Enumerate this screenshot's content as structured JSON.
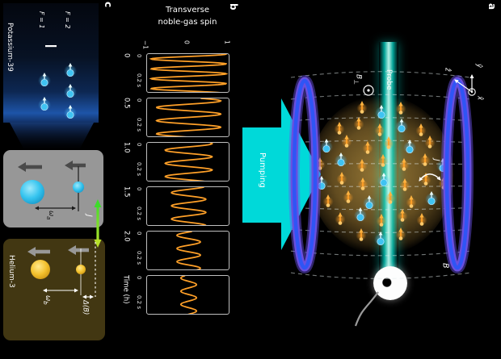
{
  "panels": {
    "a_label": "a",
    "b_label": "b",
    "c_label": "c"
  },
  "panel_a": {
    "pumping_label": "Pumping",
    "probe_label": "Probe",
    "b_perp": {
      "base": "B",
      "sub": "⊥"
    },
    "b_field_label": "B",
    "j_label": "J",
    "axis_x": "x̂",
    "axis_y": "ŷ",
    "axis_z": "ẑ",
    "colors": {
      "pump": "#00d9d9",
      "probe": "#00e0d0",
      "coil": "#2f55f5",
      "noble_spin": "#ffa028",
      "alkali_atom": "#3fc3f2"
    }
  },
  "panel_b": {
    "title_line1": "Transverse",
    "title_line2": "noble-gas spin",
    "amp_ticks": [
      "−1",
      "0",
      "1"
    ],
    "win_tick_start": "0",
    "win_tick_end": "0.2 s",
    "time_axis_label": "Time (h)",
    "trace_color": "#ffa028",
    "rows": [
      {
        "time_label": "0",
        "amplitude": 0.96,
        "cycles": 4,
        "phase": 1.6
      },
      {
        "time_label": "0.5",
        "amplitude": 0.82,
        "cycles": 3,
        "phase": 0.4
      },
      {
        "time_label": "1.0",
        "amplitude": 0.6,
        "cycles": 3,
        "phase": 1.2
      },
      {
        "time_label": "1.5",
        "amplitude": 0.44,
        "cycles": 3,
        "phase": 2.1
      },
      {
        "time_label": "2.0",
        "amplitude": 0.3,
        "cycles": 3,
        "phase": 2.9
      },
      {
        "time_label": "",
        "amplitude": 0.2,
        "cycles": 3,
        "phase": 3.7
      }
    ]
  },
  "panel_c": {
    "potassium_label": "Potassium-39",
    "f2_label": "F = 2",
    "f1_label": "F = 1",
    "helium_label": "Helium-3",
    "omega_a": {
      "base": "ω",
      "sub": "a"
    },
    "omega_b": {
      "base": "ω",
      "sub": "b"
    },
    "delta_label": "Δ(B)",
    "j_label": "J"
  },
  "chart_data": {
    "type": "line",
    "title": "Transverse noble-gas spin",
    "xlabel": "Time (h)",
    "snapshot_times_h": [
      0,
      0.5,
      1.0,
      1.5,
      2.0
    ],
    "snapshot_window": {
      "start_s": 0,
      "end_s": 0.2
    },
    "ylim": [
      -1,
      1
    ],
    "y_ticks": [
      -1,
      0,
      1
    ],
    "relative_amplitudes": [
      0.96,
      0.82,
      0.6,
      0.44,
      0.3,
      0.2
    ],
    "series_color": "#ffa028"
  }
}
